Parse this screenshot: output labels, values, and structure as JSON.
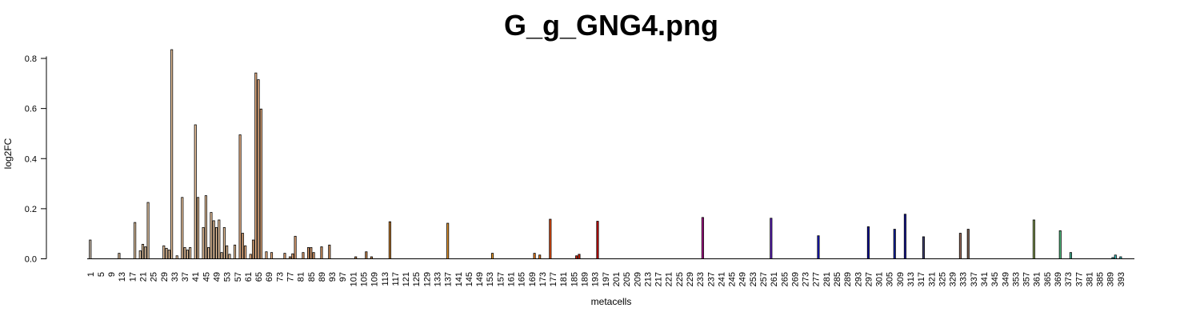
{
  "chart_data": {
    "type": "bar",
    "title": "G_g_GNG4.png",
    "xlabel": "metacells",
    "ylabel": "log2FC",
    "ylim": [
      0,
      0.84
    ],
    "y_ticks": [
      "0.0",
      "0.2",
      "0.4",
      "0.6",
      "0.8"
    ],
    "n_categories": 396,
    "x_tick_labels": [
      "1",
      "5",
      "9",
      "13",
      "17",
      "21",
      "25",
      "29",
      "33",
      "37",
      "41",
      "45",
      "49",
      "53",
      "57",
      "61",
      "65",
      "69",
      "73",
      "77",
      "81",
      "85",
      "89",
      "93",
      "97",
      "101",
      "105",
      "109",
      "113",
      "117",
      "121",
      "125",
      "129",
      "133",
      "137",
      "141",
      "145",
      "149",
      "153",
      "157",
      "161",
      "165",
      "169",
      "173",
      "177",
      "181",
      "185",
      "189",
      "193",
      "197",
      "201",
      "205",
      "209",
      "213",
      "217",
      "221",
      "225",
      "229",
      "233",
      "237",
      "241",
      "245",
      "249",
      "253",
      "257",
      "261",
      "265",
      "269",
      "273",
      "277",
      "281",
      "285",
      "289",
      "293",
      "297",
      "301",
      "305",
      "309",
      "313",
      "317",
      "321",
      "325",
      "329",
      "333",
      "337",
      "341",
      "345",
      "349",
      "353",
      "357",
      "361",
      "365",
      "369",
      "373",
      "377",
      "381",
      "385",
      "389",
      "393"
    ],
    "grid": false,
    "legend": "none",
    "bars": [
      {
        "x": 1,
        "value": 0.075,
        "color": "#c6b8a8"
      },
      {
        "x": 12,
        "value": 0.022,
        "color": "#d2b494"
      },
      {
        "x": 18,
        "value": 0.145,
        "color": "#e8c8a4"
      },
      {
        "x": 20,
        "value": 0.032,
        "color": "#e8c8a4"
      },
      {
        "x": 21,
        "value": 0.058,
        "color": "#e8c8a4"
      },
      {
        "x": 22,
        "value": 0.048,
        "color": "#e8c8a4"
      },
      {
        "x": 23,
        "value": 0.225,
        "color": "#e8c8a4"
      },
      {
        "x": 29,
        "value": 0.052,
        "color": "#f0c8a0"
      },
      {
        "x": 30,
        "value": 0.042,
        "color": "#f0c8a0"
      },
      {
        "x": 31,
        "value": 0.035,
        "color": "#f0c8a0"
      },
      {
        "x": 32,
        "value": 0.835,
        "color": "#f0c8a0"
      },
      {
        "x": 34,
        "value": 0.012,
        "color": "#f0c8a0"
      },
      {
        "x": 36,
        "value": 0.245,
        "color": "#f0c8a0"
      },
      {
        "x": 37,
        "value": 0.045,
        "color": "#f0c8a0"
      },
      {
        "x": 38,
        "value": 0.035,
        "color": "#f0c8a0"
      },
      {
        "x": 39,
        "value": 0.045,
        "color": "#f0c8a0"
      },
      {
        "x": 41,
        "value": 0.535,
        "color": "#f0c8a0"
      },
      {
        "x": 42,
        "value": 0.245,
        "color": "#f0c8a0"
      },
      {
        "x": 44,
        "value": 0.125,
        "color": "#f0c8a0"
      },
      {
        "x": 45,
        "value": 0.252,
        "color": "#f0c8a0"
      },
      {
        "x": 46,
        "value": 0.045,
        "color": "#f0c8a0"
      },
      {
        "x": 47,
        "value": 0.185,
        "color": "#f0c8a0"
      },
      {
        "x": 48,
        "value": 0.152,
        "color": "#f0c8a0"
      },
      {
        "x": 49,
        "value": 0.125,
        "color": "#f0c8a0"
      },
      {
        "x": 50,
        "value": 0.155,
        "color": "#f0c8a0"
      },
      {
        "x": 51,
        "value": 0.025,
        "color": "#f0c8a0"
      },
      {
        "x": 52,
        "value": 0.125,
        "color": "#f0c8a0"
      },
      {
        "x": 53,
        "value": 0.052,
        "color": "#f0c8a0"
      },
      {
        "x": 54,
        "value": 0.018,
        "color": "#f0c8a0"
      },
      {
        "x": 56,
        "value": 0.055,
        "color": "#f0c8a0"
      },
      {
        "x": 58,
        "value": 0.495,
        "color": "#f4b888"
      },
      {
        "x": 59,
        "value": 0.102,
        "color": "#f4b888"
      },
      {
        "x": 60,
        "value": 0.052,
        "color": "#f4b888"
      },
      {
        "x": 62,
        "value": 0.018,
        "color": "#f4b888"
      },
      {
        "x": 63,
        "value": 0.075,
        "color": "#f4b888"
      },
      {
        "x": 64,
        "value": 0.742,
        "color": "#f4b888"
      },
      {
        "x": 65,
        "value": 0.715,
        "color": "#f4b888"
      },
      {
        "x": 66,
        "value": 0.598,
        "color": "#f4b888"
      },
      {
        "x": 68,
        "value": 0.028,
        "color": "#f4b888"
      },
      {
        "x": 70,
        "value": 0.025,
        "color": "#f4b888"
      },
      {
        "x": 75,
        "value": 0.022,
        "color": "#e8a878"
      },
      {
        "x": 77,
        "value": 0.008,
        "color": "#e8a878"
      },
      {
        "x": 78,
        "value": 0.02,
        "color": "#e8a878"
      },
      {
        "x": 79,
        "value": 0.09,
        "color": "#e8a878"
      },
      {
        "x": 82,
        "value": 0.025,
        "color": "#e0a070"
      },
      {
        "x": 84,
        "value": 0.045,
        "color": "#e0a070"
      },
      {
        "x": 85,
        "value": 0.045,
        "color": "#e0a070"
      },
      {
        "x": 86,
        "value": 0.025,
        "color": "#e0a070"
      },
      {
        "x": 89,
        "value": 0.048,
        "color": "#d89868"
      },
      {
        "x": 92,
        "value": 0.055,
        "color": "#d09060"
      },
      {
        "x": 102,
        "value": 0.008,
        "color": "#c88850"
      },
      {
        "x": 106,
        "value": 0.028,
        "color": "#c88850"
      },
      {
        "x": 108,
        "value": 0.008,
        "color": "#c88850"
      },
      {
        "x": 115,
        "value": 0.148,
        "color": "#c88030"
      },
      {
        "x": 137,
        "value": 0.142,
        "color": "#e89830"
      },
      {
        "x": 154,
        "value": 0.022,
        "color": "#f0a030"
      },
      {
        "x": 170,
        "value": 0.022,
        "color": "#f08020"
      },
      {
        "x": 172,
        "value": 0.015,
        "color": "#f08020"
      },
      {
        "x": 176,
        "value": 0.158,
        "color": "#f05010"
      },
      {
        "x": 186,
        "value": 0.012,
        "color": "#e02000"
      },
      {
        "x": 187,
        "value": 0.018,
        "color": "#e02000"
      },
      {
        "x": 194,
        "value": 0.15,
        "color": "#d00000"
      },
      {
        "x": 234,
        "value": 0.165,
        "color": "#b01890"
      },
      {
        "x": 260,
        "value": 0.162,
        "color": "#6020c0"
      },
      {
        "x": 278,
        "value": 0.092,
        "color": "#1818c8"
      },
      {
        "x": 297,
        "value": 0.128,
        "color": "#0808a0"
      },
      {
        "x": 307,
        "value": 0.118,
        "color": "#1020a0"
      },
      {
        "x": 311,
        "value": 0.178,
        "color": "#2020a0"
      },
      {
        "x": 318,
        "value": 0.088,
        "color": "#404070"
      },
      {
        "x": 332,
        "value": 0.102,
        "color": "#a07060"
      },
      {
        "x": 335,
        "value": 0.118,
        "color": "#806050"
      },
      {
        "x": 360,
        "value": 0.155,
        "color": "#90a860"
      },
      {
        "x": 370,
        "value": 0.112,
        "color": "#50c080"
      },
      {
        "x": 374,
        "value": 0.025,
        "color": "#50c0a0"
      },
      {
        "x": 390,
        "value": 0.005,
        "color": "#40c0c0"
      },
      {
        "x": 391,
        "value": 0.015,
        "color": "#40c0c0"
      },
      {
        "x": 393,
        "value": 0.008,
        "color": "#40c0c0"
      }
    ]
  }
}
